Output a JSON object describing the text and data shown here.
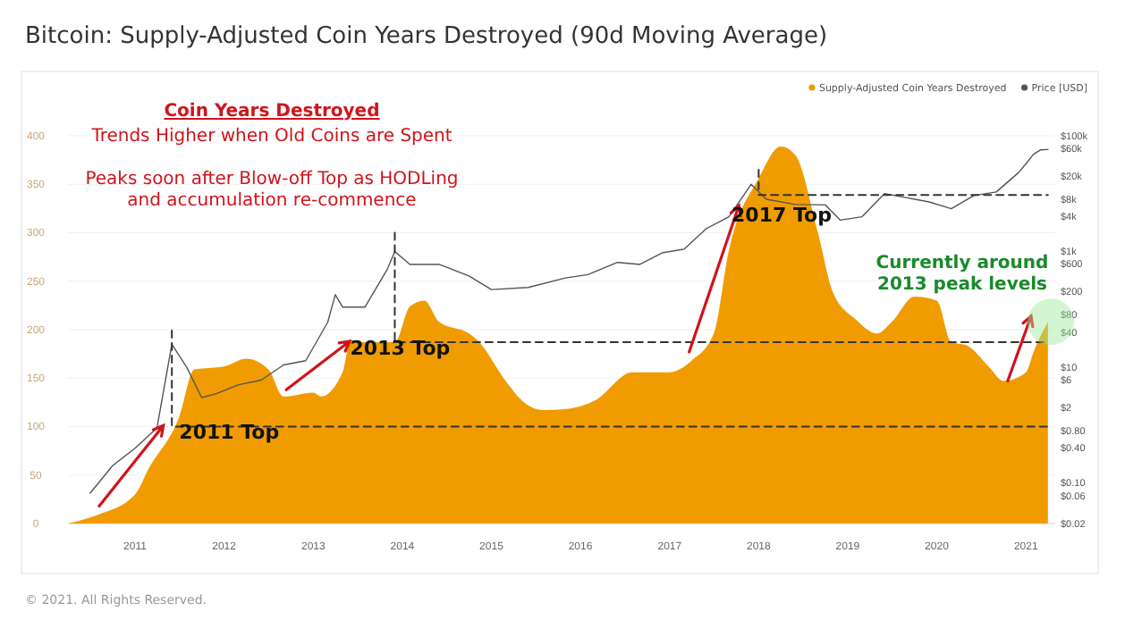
{
  "chart_data": {
    "type": "area",
    "title": "Bitcoin: Supply-Adjusted Coin Years Destroyed (90d Moving Average)",
    "xlim": [
      "2010-04",
      "2021-05"
    ],
    "xticks": [
      "2011",
      "2012",
      "2013",
      "2014",
      "2015",
      "2016",
      "2017",
      "2018",
      "2019",
      "2020",
      "2021"
    ],
    "ylim": [
      0,
      400
    ],
    "yticks": [
      0,
      50,
      100,
      150,
      200,
      250,
      300,
      350,
      400
    ],
    "log": "y2",
    "y2lim": [
      0.02,
      100000
    ],
    "y2ticks": [
      {
        "value": 100000,
        "label": "$100k"
      },
      {
        "value": 60000,
        "label": "$60k"
      },
      {
        "value": 20000,
        "label": "$20k"
      },
      {
        "value": 8000,
        "label": "$8k"
      },
      {
        "value": 4000,
        "label": "$4k"
      },
      {
        "value": 1000,
        "label": "$1k"
      },
      {
        "value": 600,
        "label": "$600"
      },
      {
        "value": 200,
        "label": "$200"
      },
      {
        "value": 80,
        "label": "$80"
      },
      {
        "value": 40,
        "label": "$40"
      },
      {
        "value": 10,
        "label": "$10"
      },
      {
        "value": 6,
        "label": "$6"
      },
      {
        "value": 2,
        "label": "$2"
      },
      {
        "value": 0.8,
        "label": "$0.80"
      },
      {
        "value": 0.4,
        "label": "$0.40"
      },
      {
        "value": 0.1,
        "label": "$0.10"
      },
      {
        "value": 0.06,
        "label": "$0.06"
      },
      {
        "value": 0.02,
        "label": "$0.02"
      }
    ],
    "grid": "y",
    "legend": "top right",
    "marker": "none",
    "series": [
      {
        "name": "Supply-Adjusted Coin Years Destroyed",
        "color": "#f09c00",
        "x": [
          "2010-04",
          "2010-08",
          "2011-01",
          "2011-03",
          "2011-07",
          "2011-09",
          "2012-01",
          "2012-04",
          "2012-07",
          "2012-09",
          "2013-01",
          "2013-02",
          "2013-05",
          "2013-06",
          "2013-12",
          "2014-02",
          "2014-04",
          "2014-06",
          "2014-10",
          "2014-11",
          "2015-03",
          "2015-05",
          "2015-08",
          "2015-11",
          "2016-03",
          "2016-08",
          "2017-01",
          "2017-04",
          "2017-07",
          "2017-09",
          "2018-01",
          "2018-04",
          "2018-06",
          "2018-09",
          "2018-11",
          "2019-02",
          "2019-05",
          "2019-07",
          "2019-10",
          "2020-01",
          "2020-03",
          "2020-05",
          "2020-08",
          "2020-10",
          "2021-01",
          "2021-02",
          "2021-04"
        ],
        "values": [
          0,
          9,
          30,
          58,
          110,
          159,
          162,
          170,
          159,
          131,
          135,
          131,
          156,
          187,
          187,
          224,
          230,
          208,
          196,
          190,
          147,
          128,
          117,
          118,
          127,
          156,
          156,
          168,
          196,
          282,
          356,
          389,
          380,
          300,
          239,
          211,
          196,
          208,
          234,
          230,
          187,
          184,
          162,
          147,
          156,
          177,
          208
        ]
      },
      {
        "name": "Price [USD]",
        "type": "line",
        "axis": "y2",
        "color": "#555555",
        "x": [
          "2010-07",
          "2010-10",
          "2011-01",
          "2011-04",
          "2011-06",
          "2011-08",
          "2011-10",
          "2011-12",
          "2012-03",
          "2012-06",
          "2012-09",
          "2012-12",
          "2013-03",
          "2013-04",
          "2013-05",
          "2013-08",
          "2013-11",
          "2013-12",
          "2014-02",
          "2014-06",
          "2014-10",
          "2015-01",
          "2015-06",
          "2015-11",
          "2016-02",
          "2016-06",
          "2016-09",
          "2016-12",
          "2017-03",
          "2017-06",
          "2017-09",
          "2017-12",
          "2018-02",
          "2018-06",
          "2018-10",
          "2018-12",
          "2019-03",
          "2019-06",
          "2019-09",
          "2019-12",
          "2020-03",
          "2020-06",
          "2020-09",
          "2020-12",
          "2021-01",
          "2021-02",
          "2021-03",
          "2021-04"
        ],
        "values": [
          0.067,
          0.2,
          0.4,
          0.9,
          25,
          10,
          3,
          3.5,
          5,
          6,
          11,
          13,
          60,
          180,
          110,
          110,
          500,
          1000,
          600,
          600,
          380,
          220,
          240,
          350,
          400,
          650,
          600,
          950,
          1100,
          2500,
          4000,
          14500,
          8000,
          6500,
          6400,
          3500,
          4000,
          10000,
          8500,
          7200,
          5500,
          9300,
          10700,
          23000,
          33000,
          48000,
          57000,
          58000
        ]
      },
      {
        "type": "line",
        "line_style": "dashed",
        "color": "#333333",
        "x": [
          "2011-06",
          "2011-06",
          "2021-04"
        ],
        "values": [
          199,
          100,
          100
        ]
      },
      {
        "type": "line",
        "line_style": "dashed",
        "color": "#333333",
        "x": [
          "2013-12",
          "2013-12",
          "2021-04"
        ],
        "values": [
          300,
          187,
          187
        ]
      },
      {
        "type": "line",
        "line_style": "dashed",
        "color": "#333333",
        "x": [
          "2018-01",
          "2018-01",
          "2021-04"
        ],
        "values": [
          365,
          339,
          339
        ]
      }
    ],
    "annotations": [
      "Coin Years Destroyed",
      "Trends Higher when Old Coins are Spent",
      "Peaks soon after Blow-off Top as HODLing and accumulation re-commence",
      {
        "text": "2011 Top",
        "x": "2011-07",
        "y": 88
      },
      {
        "text": "2013 Top",
        "x": "2013-06",
        "y": 174
      },
      "2017 Top",
      "Currently around 2013 peak levels",
      "© 2021. All Rights Reserved."
    ]
  }
}
